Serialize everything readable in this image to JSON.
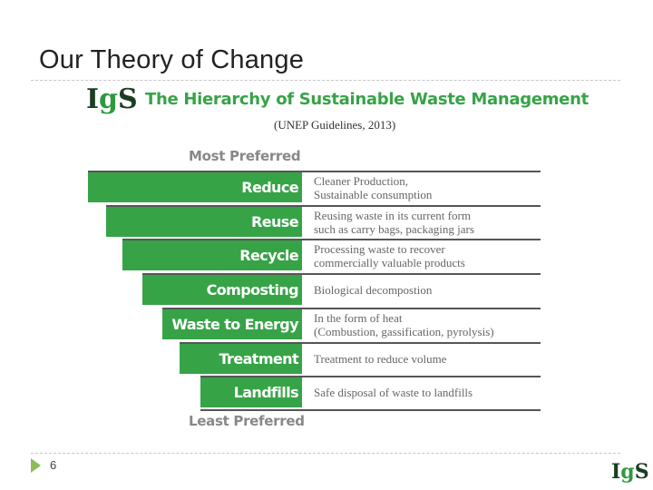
{
  "slide": {
    "title": "Our Theory of Change",
    "page_number": "6"
  },
  "logo": {
    "name": "IGS",
    "text_before": "I",
    "text_leaf": "g",
    "text_after": "S"
  },
  "diagram": {
    "title": "The Hierarchy of Sustainable Waste Management",
    "subtitle": "(UNEP Guidelines, 2013)",
    "top_label": "Most Preferred",
    "bottom_label": "Least Preferred",
    "tiers": [
      {
        "label": "Reduce",
        "description_lines": [
          "Cleaner Production,",
          "Sustainable consumption"
        ]
      },
      {
        "label": "Reuse",
        "description_lines": [
          "Reusing waste in its current form",
          "such as carry bags, packaging jars"
        ]
      },
      {
        "label": "Recycle",
        "description_lines": [
          "Processing waste to recover",
          "commercially valuable products"
        ]
      },
      {
        "label": "Composting",
        "description_lines": [
          "Biological decompostion"
        ]
      },
      {
        "label": "Waste to Energy",
        "description_lines": [
          "In the form of heat",
          "(Combustion, gassification, pyrolysis)"
        ]
      },
      {
        "label": "Treatment",
        "description_lines": [
          "Treatment to reduce volume"
        ]
      },
      {
        "label": "Landfills",
        "description_lines": [
          "Safe disposal of waste to landfills"
        ]
      }
    ],
    "colors": {
      "bar": "#37a347",
      "title": "#37a347",
      "preference_label": "#888888"
    }
  }
}
